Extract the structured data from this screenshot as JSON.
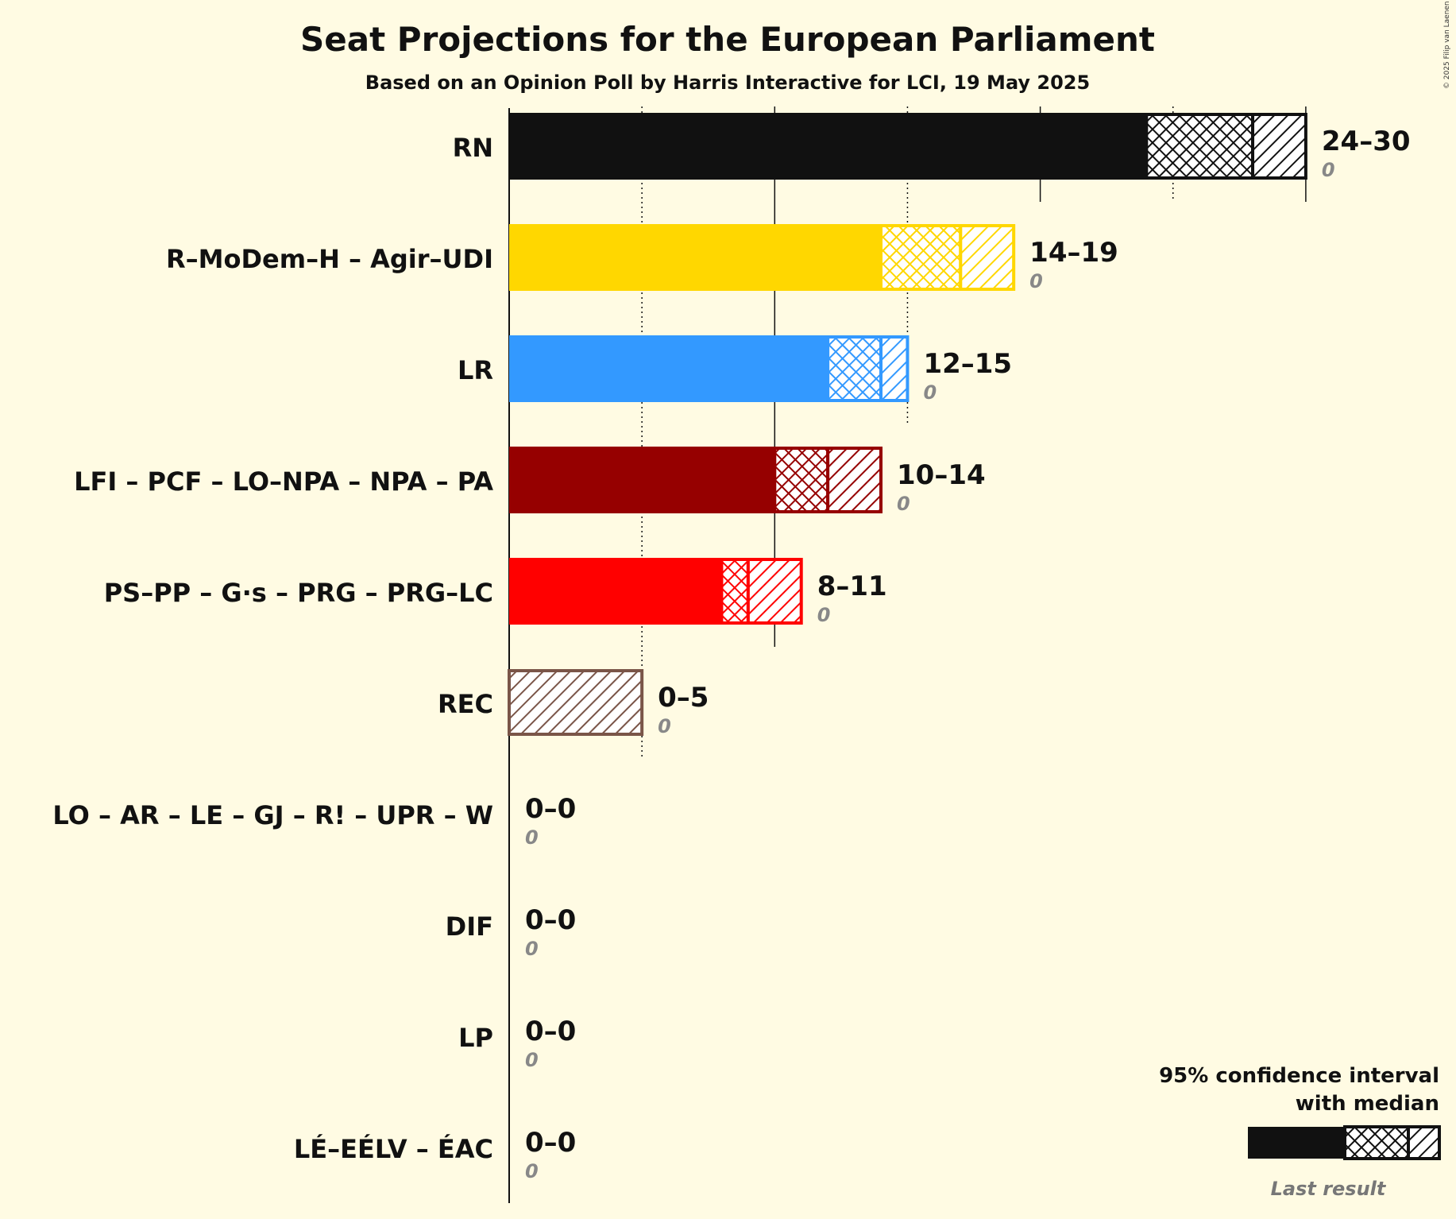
{
  "title": "Seat Projections for the European Parliament",
  "subtitle": "Based on an Opinion Poll by Harris Interactive for LCI, 19 May 2025",
  "copyright": "© 2025 Filip van Laenen",
  "legend": {
    "line1": "95% confidence interval",
    "line2": "with median",
    "last_result": "Last result",
    "colors": {
      "bar": "#111111",
      "last": "#8a8a7e"
    }
  },
  "colors": {
    "background": "#fffbe3",
    "axis": "#111111"
  },
  "chart_data": {
    "type": "bar",
    "orientation": "horizontal",
    "title": "Seat Projections for the European Parliament",
    "subtitle": "Based on an Opinion Poll by Harris Interactive for LCI, 19 May 2025",
    "xlim": [
      0,
      30
    ],
    "gridlines": [
      5,
      10,
      15,
      20,
      25,
      30
    ],
    "series": [
      {
        "party": "RN",
        "low": 24,
        "median": 28,
        "high": 30,
        "last": 0,
        "range_label": "24–30",
        "last_label": "0",
        "color": "#111111"
      },
      {
        "party": "R–MoDem–H – Agir–UDI",
        "low": 14,
        "median": 17,
        "high": 19,
        "last": 0,
        "range_label": "14–19",
        "last_label": "0",
        "color": "#ffd700"
      },
      {
        "party": "LR",
        "low": 12,
        "median": 14,
        "high": 15,
        "last": 0,
        "range_label": "12–15",
        "last_label": "0",
        "color": "#3399ff"
      },
      {
        "party": "LFI – PCF – LO–NPA – NPA – PA",
        "low": 10,
        "median": 12,
        "high": 14,
        "last": 0,
        "range_label": "10–14",
        "last_label": "0",
        "color": "#960000"
      },
      {
        "party": "PS–PP – G·s – PRG – PRG–LC",
        "low": 8,
        "median": 9,
        "high": 11,
        "last": 0,
        "range_label": "8–11",
        "last_label": "0",
        "color": "#ff0000"
      },
      {
        "party": "REC",
        "low": 0,
        "median": 0,
        "high": 5,
        "last": 0,
        "range_label": "0–5",
        "last_label": "0",
        "color": "#7a5548"
      },
      {
        "party": "LO – AR – LE – GJ – R! – UPR – W",
        "low": 0,
        "median": 0,
        "high": 0,
        "last": 0,
        "range_label": "0–0",
        "last_label": "0",
        "color": "#777777"
      },
      {
        "party": "DIF",
        "low": 0,
        "median": 0,
        "high": 0,
        "last": 0,
        "range_label": "0–0",
        "last_label": "0",
        "color": "#777777"
      },
      {
        "party": "LP",
        "low": 0,
        "median": 0,
        "high": 0,
        "last": 0,
        "range_label": "0–0",
        "last_label": "0",
        "color": "#777777"
      },
      {
        "party": "LÉ–EÉLV – ÉAC",
        "low": 0,
        "median": 0,
        "high": 0,
        "last": 0,
        "range_label": "0–0",
        "last_label": "0",
        "color": "#777777"
      }
    ]
  }
}
